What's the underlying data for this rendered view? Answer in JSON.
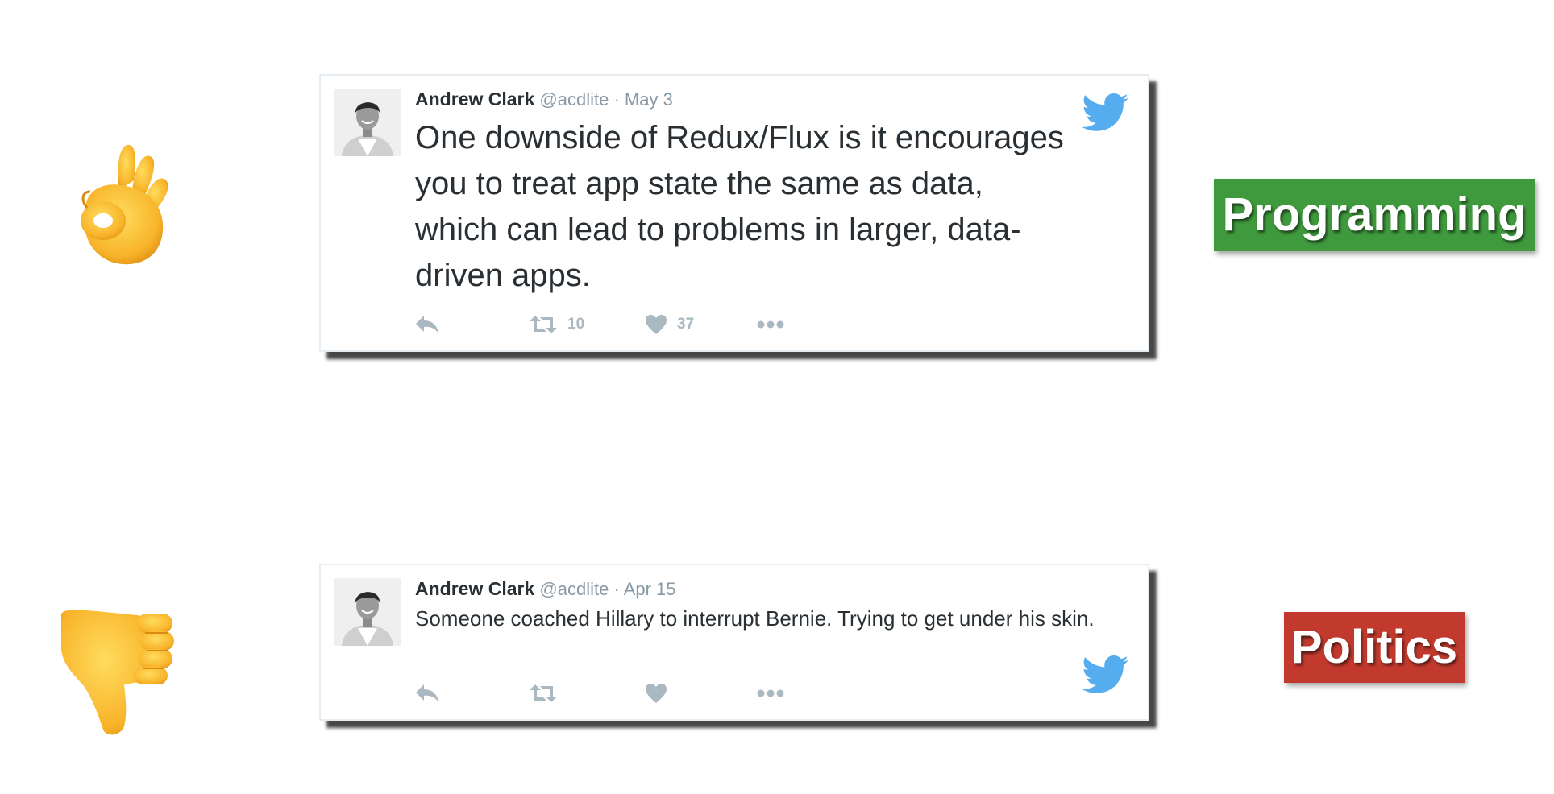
{
  "tweets": [
    {
      "author_name": "Andrew Clark",
      "handle": "@acdlite",
      "separator": "·",
      "date": "May 3",
      "text": "One downside of Redux/Flux is it encourages you to treat app state the same as data, which can lead to problems in larger, data-driven apps.",
      "retweet_count": "10",
      "like_count": "37"
    },
    {
      "author_name": "Andrew Clark",
      "handle": "@acdlite",
      "separator": "·",
      "date": "Apr 15",
      "text": "Someone coached Hillary to interrupt Bernie. Trying to get under his skin.",
      "retweet_count": "",
      "like_count": ""
    }
  ],
  "tags": {
    "programming": "Programming",
    "politics": "Politics"
  },
  "icons": {
    "ok_hand": "ok-hand-emoji",
    "thumbs_down": "thumbs-down-emoji",
    "bird": "twitter-bird",
    "reply": "reply",
    "retweet": "retweet",
    "like": "heart",
    "more": "more-dots"
  },
  "colors": {
    "programming_tag": "#3f9a3d",
    "politics_tag": "#c23a2e",
    "twitter_blue": "#55acee",
    "action_gray": "#aab8c2"
  }
}
